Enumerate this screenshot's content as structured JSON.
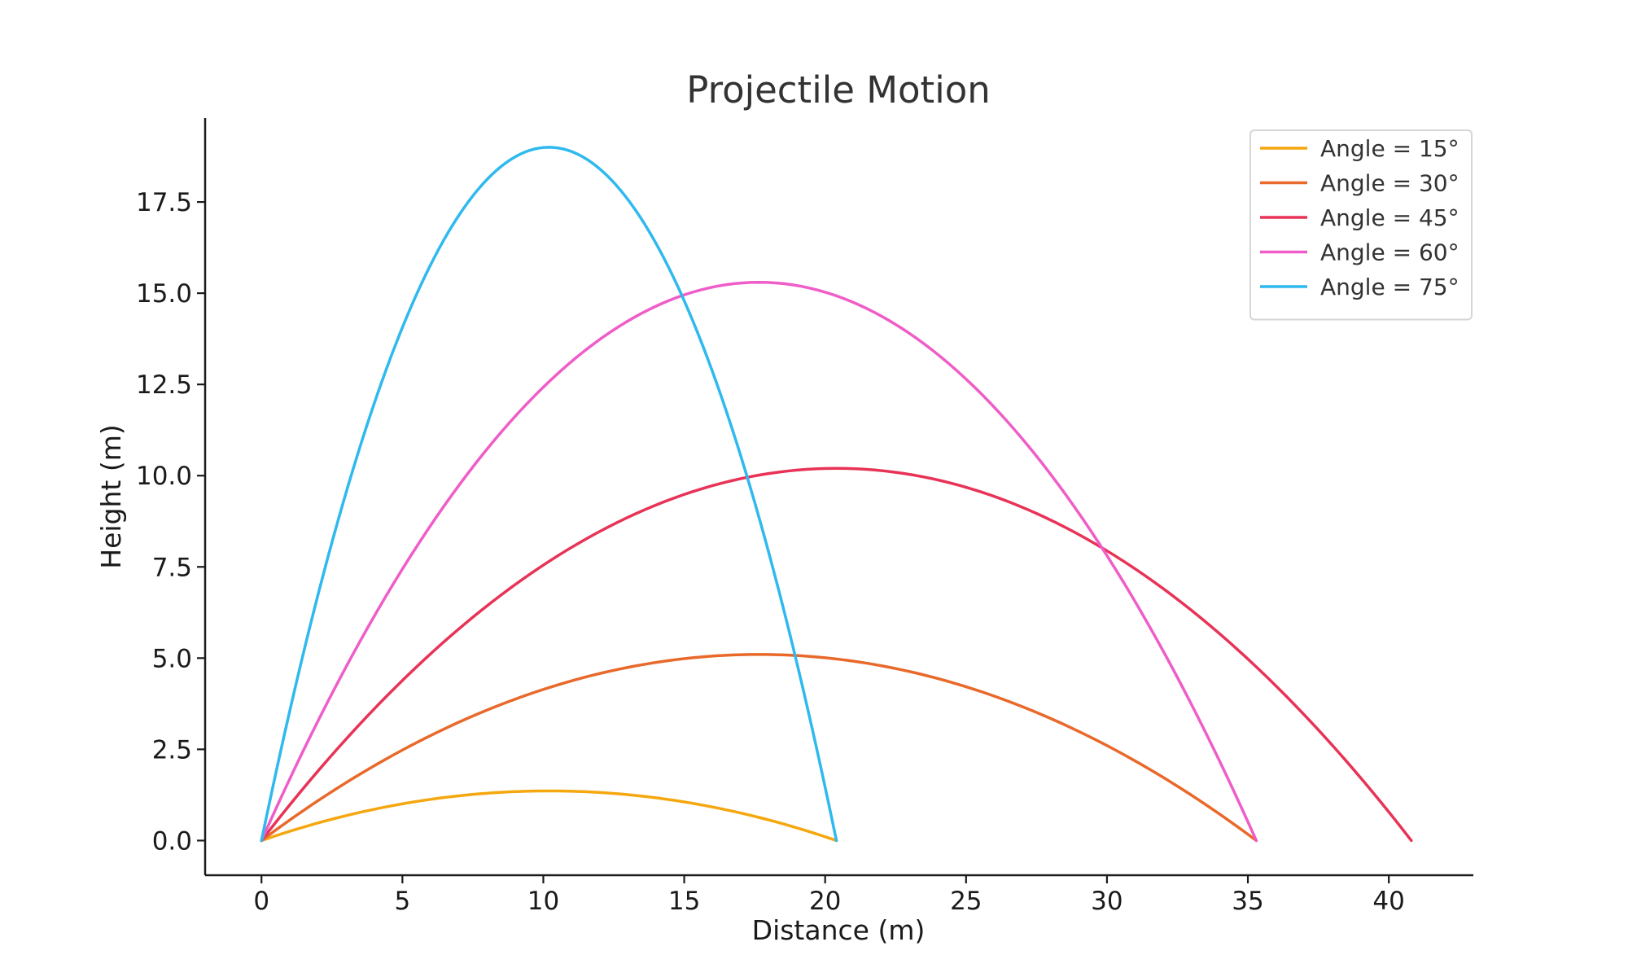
{
  "chart_data": {
    "type": "line",
    "title": "Projectile Motion",
    "xlabel": "Distance (m)",
    "ylabel": "Height (m)",
    "xlim": [
      -2,
      43
    ],
    "ylim": [
      -0.95,
      19.8
    ],
    "x_ticks": [
      0,
      5,
      10,
      15,
      20,
      25,
      30,
      35,
      40
    ],
    "x_tick_labels": [
      "0",
      "5",
      "10",
      "15",
      "20",
      "25",
      "30",
      "35",
      "40"
    ],
    "y_ticks": [
      0,
      2.5,
      5,
      7.5,
      10,
      12.5,
      15,
      17.5
    ],
    "y_tick_labels": [
      "0.0",
      "2.5",
      "5.0",
      "7.5",
      "10.0",
      "12.5",
      "15.0",
      "17.5"
    ],
    "grid": false,
    "legend_position": "top-right",
    "series": [
      {
        "name": "Angle = 15°",
        "color": "#f5a70f",
        "x": [
          0,
          2.04,
          4.08,
          6.12,
          8.16,
          10.2,
          12.24,
          14.28,
          16.32,
          18.36,
          20.4
        ],
        "y": [
          0,
          0.49,
          0.87,
          1.14,
          1.31,
          1.36,
          1.31,
          1.14,
          0.87,
          0.49,
          0
        ]
      },
      {
        "name": "Angle = 30°",
        "color": "#e8692a",
        "x": [
          0,
          3.53,
          7.06,
          10.59,
          14.12,
          17.65,
          21.18,
          24.71,
          28.24,
          31.77,
          35.3
        ],
        "y": [
          0,
          1.84,
          3.27,
          4.29,
          4.9,
          5.1,
          4.9,
          4.29,
          3.27,
          1.84,
          0
        ]
      },
      {
        "name": "Angle = 45°",
        "color": "#e83357",
        "x": [
          0,
          4.08,
          8.16,
          12.24,
          16.32,
          20.4,
          24.48,
          28.56,
          32.64,
          36.72,
          40.8
        ],
        "y": [
          0,
          3.67,
          6.53,
          8.57,
          9.79,
          10.2,
          9.79,
          8.57,
          6.53,
          3.67,
          0
        ]
      },
      {
        "name": "Angle = 60°",
        "color": "#ef5dc8",
        "x": [
          0,
          3.53,
          7.06,
          10.59,
          14.12,
          17.65,
          21.18,
          24.71,
          28.24,
          31.77,
          35.3
        ],
        "y": [
          0,
          5.51,
          9.8,
          12.86,
          14.7,
          15.3,
          14.7,
          12.86,
          9.8,
          5.51,
          0
        ]
      },
      {
        "name": "Angle = 75°",
        "color": "#2fb9ee",
        "x": [
          0,
          2.04,
          4.08,
          6.12,
          8.16,
          10.2,
          12.24,
          14.28,
          16.32,
          18.36,
          20.4
        ],
        "y": [
          0,
          6.84,
          12.16,
          15.96,
          18.24,
          19.0,
          18.24,
          15.96,
          12.16,
          6.84,
          0
        ]
      }
    ]
  }
}
